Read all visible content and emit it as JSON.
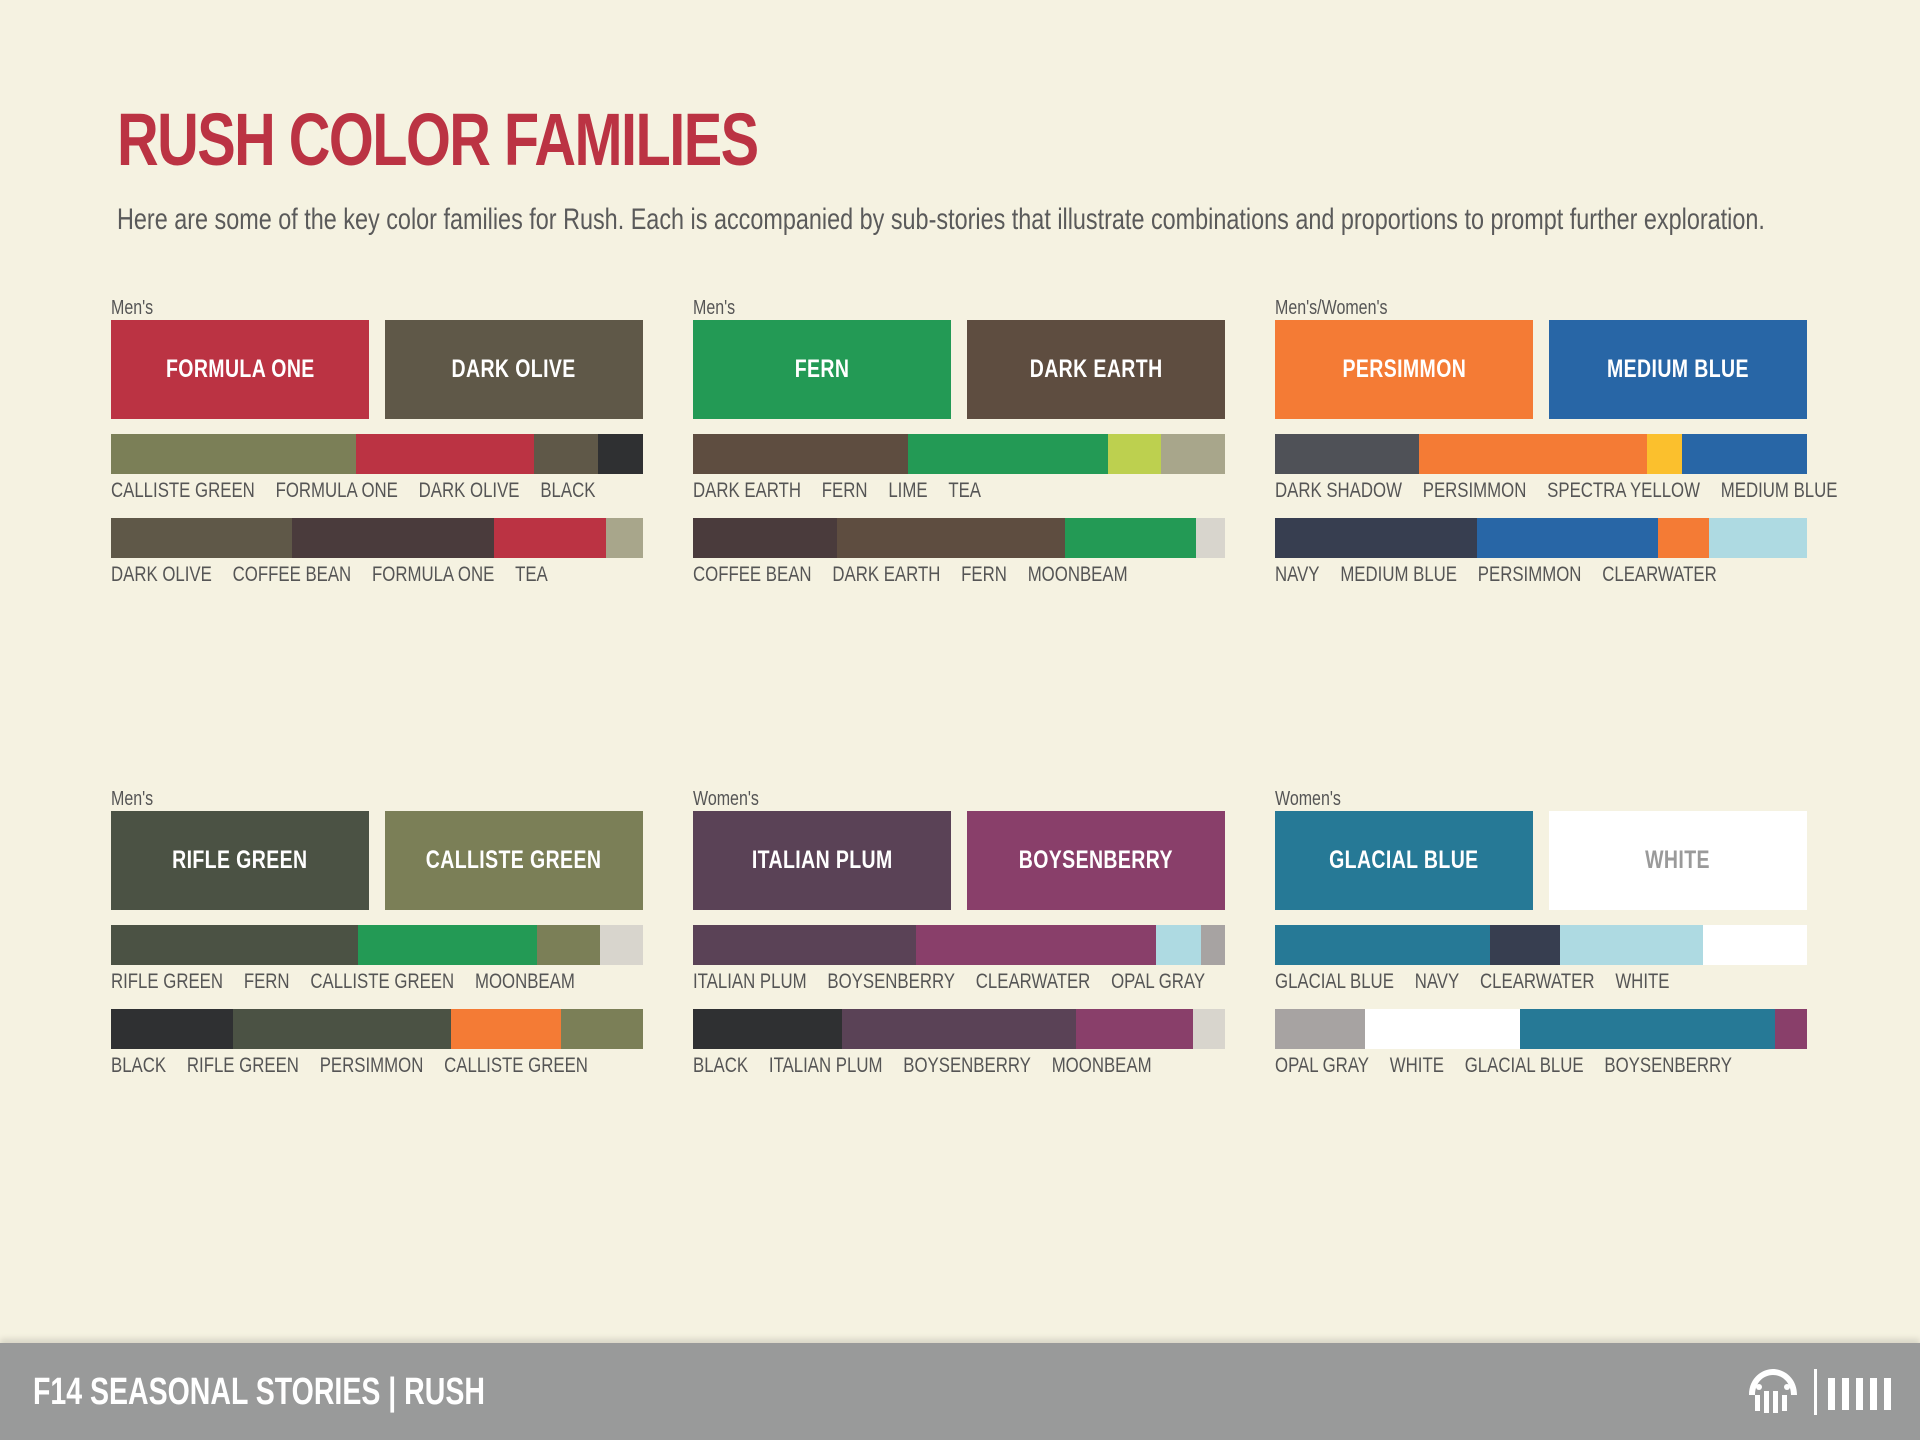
{
  "title": "RUSH COLOR FAMILIES",
  "subtitle": "Here are some of the key color families for Rush. Each is accompanied by sub-stories that illustrate combinations and proportions to prompt further exploration.",
  "families": [
    {
      "label": "Men's",
      "primary": [
        {
          "name": "FORMULA ONE",
          "color": "#bb3343",
          "text_color": "#ffffff"
        },
        {
          "name": "DARK OLIVE",
          "color": "#5f5848",
          "text_color": "#ffffff"
        }
      ],
      "stories": [
        {
          "segments": [
            {
              "name": "CALLISTE GREEN",
              "color": "#7b7f57",
              "share": 0.46
            },
            {
              "name": "FORMULA ONE",
              "color": "#bb3343",
              "share": 0.335
            },
            {
              "name": "DARK OLIVE",
              "color": "#5f5848",
              "share": 0.12
            },
            {
              "name": "BLACK",
              "color": "#2f3032",
              "share": 0.085
            }
          ]
        },
        {
          "segments": [
            {
              "name": "DARK OLIVE",
              "color": "#5f5848",
              "share": 0.34
            },
            {
              "name": "COFFEE BEAN",
              "color": "#4a3b3c",
              "share": 0.38
            },
            {
              "name": "FORMULA ONE",
              "color": "#bb3343",
              "share": 0.21
            },
            {
              "name": "TEA",
              "color": "#a8a68b",
              "share": 0.07
            }
          ]
        }
      ]
    },
    {
      "label": "Men's",
      "primary": [
        {
          "name": "FERN",
          "color": "#239a55",
          "text_color": "#ffffff"
        },
        {
          "name": "DARK EARTH",
          "color": "#5e4d40",
          "text_color": "#ffffff"
        }
      ],
      "stories": [
        {
          "segments": [
            {
              "name": "DARK EARTH",
              "color": "#5e4d40",
              "share": 0.405
            },
            {
              "name": "FERN",
              "color": "#239a55",
              "share": 0.375
            },
            {
              "name": "LIME",
              "color": "#bdd04f",
              "share": 0.1
            },
            {
              "name": "TEA",
              "color": "#a8a68b",
              "share": 0.12
            }
          ]
        },
        {
          "segments": [
            {
              "name": "COFFEE BEAN",
              "color": "#4a3b3c",
              "share": 0.27
            },
            {
              "name": "DARK EARTH",
              "color": "#5e4d40",
              "share": 0.43
            },
            {
              "name": "FERN",
              "color": "#239a55",
              "share": 0.245
            },
            {
              "name": "MOONBEAM",
              "color": "#d8d5cd",
              "share": 0.055
            }
          ]
        }
      ]
    },
    {
      "label": "Men's/Women's",
      "primary": [
        {
          "name": "PERSIMMON",
          "color": "#f47b35",
          "text_color": "#ffffff"
        },
        {
          "name": "MEDIUM BLUE",
          "color": "#2866a6",
          "text_color": "#ffffff"
        }
      ],
      "stories": [
        {
          "segments": [
            {
              "name": "DARK SHADOW",
              "color": "#4f5157",
              "share": 0.27
            },
            {
              "name": "PERSIMMON",
              "color": "#f47b35",
              "share": 0.43
            },
            {
              "name": "SPECTRA YELLOW",
              "color": "#fbc02d",
              "share": 0.065
            },
            {
              "name": "MEDIUM BLUE",
              "color": "#2866a6",
              "share": 0.235
            }
          ]
        },
        {
          "segments": [
            {
              "name": "NAVY",
              "color": "#373e50",
              "share": 0.38
            },
            {
              "name": "MEDIUM BLUE",
              "color": "#2866a6",
              "share": 0.34
            },
            {
              "name": "PERSIMMON",
              "color": "#f47b35",
              "share": 0.095
            },
            {
              "name": "CLEARWATER",
              "color": "#aedae2",
              "share": 0.185
            }
          ]
        }
      ]
    },
    {
      "label": "Men's",
      "primary": [
        {
          "name": "RIFLE GREEN",
          "color": "#4b5244",
          "text_color": "#ffffff"
        },
        {
          "name": "CALLISTE GREEN",
          "color": "#7b7f57",
          "text_color": "#ffffff"
        }
      ],
      "stories": [
        {
          "segments": [
            {
              "name": "RIFLE GREEN",
              "color": "#4b5244",
              "share": 0.465
            },
            {
              "name": "FERN",
              "color": "#239a55",
              "share": 0.335
            },
            {
              "name": "CALLISTE GREEN",
              "color": "#7b7f57",
              "share": 0.12
            },
            {
              "name": "MOONBEAM",
              "color": "#d8d5cd",
              "share": 0.08
            }
          ]
        },
        {
          "segments": [
            {
              "name": "BLACK",
              "color": "#2f3032",
              "share": 0.23
            },
            {
              "name": "RIFLE GREEN",
              "color": "#4b5244",
              "share": 0.41
            },
            {
              "name": "PERSIMMON",
              "color": "#f47b35",
              "share": 0.205
            },
            {
              "name": "CALLISTE GREEN",
              "color": "#7b7f57",
              "share": 0.155
            }
          ]
        }
      ]
    },
    {
      "label": "Women's",
      "primary": [
        {
          "name": "ITALIAN PLUM",
          "color": "#5a4256",
          "text_color": "#ffffff"
        },
        {
          "name": "BOYSENBERRY",
          "color": "#893f6a",
          "text_color": "#ffffff"
        }
      ],
      "stories": [
        {
          "segments": [
            {
              "name": "ITALIAN PLUM",
              "color": "#5a4256",
              "share": 0.42
            },
            {
              "name": "BOYSENBERRY",
              "color": "#893f6a",
              "share": 0.45
            },
            {
              "name": "CLEARWATER",
              "color": "#aedae2",
              "share": 0.085
            },
            {
              "name": "OPAL GRAY",
              "color": "#a7a3a2",
              "share": 0.045
            }
          ]
        },
        {
          "segments": [
            {
              "name": "BLACK",
              "color": "#2f3032",
              "share": 0.28
            },
            {
              "name": "ITALIAN PLUM",
              "color": "#5a4256",
              "share": 0.44
            },
            {
              "name": "BOYSENBERRY",
              "color": "#893f6a",
              "share": 0.22
            },
            {
              "name": "MOONBEAM",
              "color": "#d8d5cd",
              "share": 0.06
            }
          ]
        }
      ]
    },
    {
      "label": "Women's",
      "primary": [
        {
          "name": "GLACIAL BLUE",
          "color": "#267996",
          "text_color": "#ffffff"
        },
        {
          "name": "WHITE",
          "color": "#ffffff",
          "text_color": "#9a9a9a"
        }
      ],
      "stories": [
        {
          "segments": [
            {
              "name": "GLACIAL BLUE",
              "color": "#267996",
              "share": 0.405
            },
            {
              "name": "NAVY",
              "color": "#373e50",
              "share": 0.13
            },
            {
              "name": "CLEARWATER",
              "color": "#aedae2",
              "share": 0.27
            },
            {
              "name": "WHITE",
              "color": "#ffffff",
              "share": 0.195
            }
          ]
        },
        {
          "segments": [
            {
              "name": "OPAL GRAY",
              "color": "#a7a3a2",
              "share": 0.17
            },
            {
              "name": "WHITE",
              "color": "#ffffff",
              "share": 0.29
            },
            {
              "name": "GLACIAL BLUE",
              "color": "#267996",
              "share": 0.48
            },
            {
              "name": "BOYSENBERRY",
              "color": "#893f6a",
              "share": 0.06
            }
          ]
        }
      ]
    }
  ],
  "footer": {
    "title": "F14 SEASONAL STORIES | RUSH",
    "logo_icon": "paw-logo-icon",
    "bars_icon": "brand-bars-icon"
  }
}
